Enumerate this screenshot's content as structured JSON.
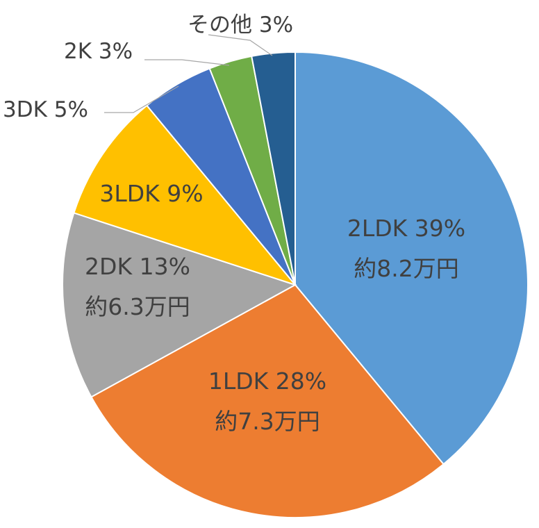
{
  "chart_data": {
    "type": "pie",
    "start": "top, clockwise",
    "slices": [
      {
        "name": "2LDK",
        "value": 39,
        "label": "2LDK 39%",
        "price": "約8.2万円",
        "color": "#5b9bd5"
      },
      {
        "name": "1LDK",
        "value": 28,
        "label": "1LDK 28%",
        "price": "約7.3万円",
        "color": "#ed7d31"
      },
      {
        "name": "2DK",
        "value": 13,
        "label": "2DK 13%",
        "price": "約6.3万円",
        "color": "#a5a5a5"
      },
      {
        "name": "3LDK",
        "value": 9,
        "label": "3LDK 9%",
        "color": "#ffc000"
      },
      {
        "name": "3DK",
        "value": 5,
        "label": "3DK 5%",
        "color": "#4472c4"
      },
      {
        "name": "2K",
        "value": 3,
        "label": "2K 3%",
        "color": "#70ad47"
      },
      {
        "name": "その他",
        "value": 3,
        "label": "その他 3%",
        "color": "#255e91"
      }
    ]
  }
}
